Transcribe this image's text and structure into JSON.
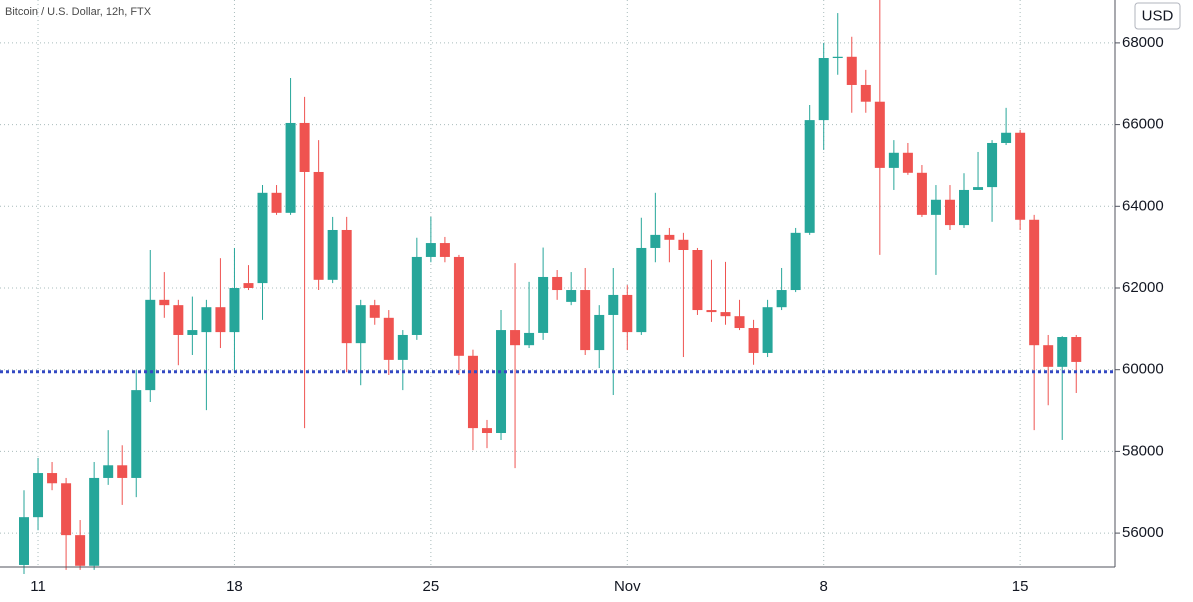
{
  "chart_data": {
    "type": "candlestick",
    "title": "Bitcoin / U.S. Dollar, 12h, FTX",
    "y_axis_label": "USD",
    "categories": [
      null,
      "11",
      null,
      null,
      null,
      null,
      null,
      null,
      null,
      null,
      null,
      null,
      null,
      null,
      null,
      "18",
      null,
      null,
      null,
      null,
      null,
      null,
      null,
      null,
      null,
      null,
      null,
      null,
      null,
      "25",
      null,
      null,
      null,
      null,
      null,
      null,
      null,
      null,
      null,
      null,
      null,
      null,
      null,
      "Nov",
      null,
      null,
      null,
      null,
      null,
      null,
      null,
      null,
      null,
      null,
      null,
      null,
      null,
      "8",
      null,
      null,
      null,
      null,
      null,
      null,
      null,
      null,
      null,
      null,
      null,
      null,
      null,
      "15",
      null,
      null,
      null,
      null
    ],
    "open": [
      55220,
      56390,
      57470,
      57220,
      55950,
      55200,
      57350,
      57660,
      57350,
      59500,
      61710,
      61580,
      60850,
      60920,
      61530,
      60920,
      62120,
      62120,
      64330,
      63840,
      66040,
      64840,
      62200,
      63420,
      60650,
      61580,
      61270,
      60240,
      60850,
      62760,
      63100,
      62760,
      60340,
      58570,
      58450,
      60970,
      60600,
      60900,
      62270,
      61660,
      61950,
      60480,
      61340,
      61830,
      60920,
      62980,
      63300,
      63180,
      62930,
      61460,
      61410,
      61310,
      61020,
      60410,
      61530,
      61950,
      63350,
      66110,
      67630,
      67660,
      66970,
      66560,
      64940,
      65310,
      64820,
      63790,
      64160,
      63540,
      64400,
      64470,
      65550,
      65800,
      63670,
      60600,
      60070,
      60800
    ],
    "high": [
      57050,
      57840,
      57740,
      57350,
      56320,
      57740,
      58520,
      58150,
      59990,
      62930,
      62390,
      61710,
      61790,
      61710,
      62730,
      62980,
      62560,
      64520,
      64520,
      67140,
      66680,
      65620,
      63740,
      63740,
      61710,
      61710,
      61460,
      60970,
      63230,
      63740,
      63250,
      62810,
      60490,
      58770,
      61460,
      62610,
      62150,
      62990,
      62440,
      62390,
      62490,
      61580,
      62490,
      62070,
      63720,
      64330,
      63470,
      63350,
      62980,
      62690,
      62640,
      61710,
      61220,
      61710,
      62490,
      63470,
      66480,
      68000,
      68730,
      68150,
      67340,
      69050,
      65620,
      65550,
      65010,
      64520,
      64520,
      64810,
      65330,
      65620,
      66410,
      65870,
      63790,
      60850,
      60820,
      60850
    ],
    "low": [
      55000,
      56070,
      57050,
      55100,
      55100,
      55100,
      57180,
      56690,
      56880,
      59210,
      61270,
      60110,
      60360,
      59010,
      60530,
      59940,
      61950,
      61220,
      63790,
      63790,
      58570,
      61950,
      62120,
      59940,
      59620,
      61100,
      59870,
      59500,
      60730,
      62630,
      62630,
      59870,
      58030,
      58080,
      58280,
      57590,
      60530,
      60730,
      61710,
      61580,
      60360,
      60040,
      59380,
      60480,
      60850,
      62630,
      62630,
      60310,
      61340,
      61170,
      61100,
      60970,
      60120,
      60310,
      61460,
      61900,
      63300,
      65380,
      67220,
      66290,
      66290,
      62810,
      64400,
      64770,
      63740,
      62320,
      63420,
      63470,
      64420,
      63620,
      65500,
      63420,
      58520,
      59130,
      58280,
      59430
    ],
    "close": [
      56390,
      57470,
      57220,
      55950,
      55200,
      57350,
      57660,
      57350,
      59500,
      61710,
      61580,
      60850,
      60970,
      61530,
      60920,
      62000,
      62000,
      64330,
      63840,
      66040,
      64840,
      62200,
      63420,
      60650,
      61580,
      61270,
      60240,
      60850,
      62760,
      63100,
      62760,
      60340,
      58570,
      58450,
      60970,
      60600,
      60900,
      62270,
      61950,
      61950,
      60480,
      61340,
      61830,
      60920,
      62980,
      63300,
      63180,
      62930,
      61460,
      61410,
      61310,
      61020,
      60410,
      61530,
      61950,
      63350,
      66110,
      67630,
      67660,
      66970,
      66560,
      64940,
      65310,
      64820,
      63790,
      64160,
      63540,
      64400,
      64470,
      65550,
      65800,
      63670,
      60600,
      60070,
      60800,
      60190
    ],
    "up_color": "#26a69a",
    "down_color": "#ef5350",
    "hline": {
      "value": 59950,
      "color": "#3349c2"
    },
    "ylim": [
      55170,
      69050
    ],
    "yticks": [
      56000,
      58000,
      60000,
      62000,
      64000,
      66000,
      68000
    ],
    "grid": true
  }
}
